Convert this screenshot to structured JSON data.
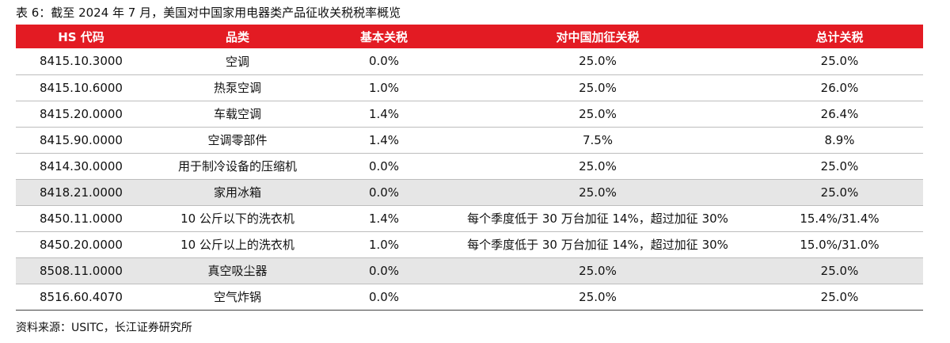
{
  "caption": "表 6：截至 2024 年 7 月，美国对中国家用电器类产品征收关税税率概览",
  "headers": [
    "HS 代码",
    "品类",
    "基本关税",
    "对中国加征关税",
    "总计关税"
  ],
  "rows": [
    {
      "cells": [
        "8415.10.3000",
        "空调",
        "0.0%",
        "25.0%",
        "25.0%"
      ],
      "shaded": false
    },
    {
      "cells": [
        "8415.10.6000",
        "热泵空调",
        "1.0%",
        "25.0%",
        "26.0%"
      ],
      "shaded": false
    },
    {
      "cells": [
        "8415.20.0000",
        "车载空调",
        "1.4%",
        "25.0%",
        "26.4%"
      ],
      "shaded": false
    },
    {
      "cells": [
        "8415.90.0000",
        "空调零部件",
        "1.4%",
        "7.5%",
        "8.9%"
      ],
      "shaded": false
    },
    {
      "cells": [
        "8414.30.0000",
        "用于制冷设备的压缩机",
        "0.0%",
        "25.0%",
        "25.0%"
      ],
      "shaded": false
    },
    {
      "cells": [
        "8418.21.0000",
        "家用冰箱",
        "0.0%",
        "25.0%",
        "25.0%"
      ],
      "shaded": true
    },
    {
      "cells": [
        "8450.11.0000",
        "10 公斤以下的洗衣机",
        "1.4%",
        "每个季度低于 30 万台加征 14%，超过加征 30%",
        "15.4%/31.4%"
      ],
      "shaded": false
    },
    {
      "cells": [
        "8450.20.0000",
        "10 公斤以上的洗衣机",
        "1.0%",
        "每个季度低于 30 万台加征 14%，超过加征 30%",
        "15.0%/31.0%"
      ],
      "shaded": false
    },
    {
      "cells": [
        "8508.11.0000",
        "真空吸尘器",
        "0.0%",
        "25.0%",
        "25.0%"
      ],
      "shaded": true
    },
    {
      "cells": [
        "8516.60.4070",
        "空气炸锅",
        "0.0%",
        "25.0%",
        "25.0%"
      ],
      "shaded": false
    }
  ],
  "source": "资料来源：USITC，长江证券研究所"
}
